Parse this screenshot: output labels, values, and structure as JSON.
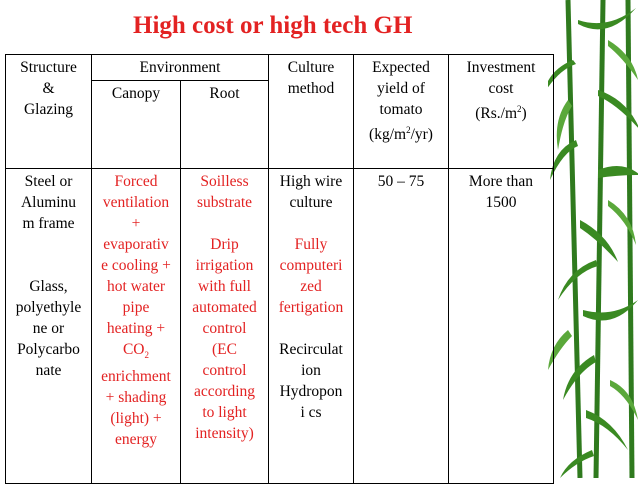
{
  "slide": {
    "title": "High cost or high tech GH",
    "colors": {
      "title": "#e32222",
      "red_text": "#e32222",
      "border": "#000000"
    }
  },
  "table": {
    "headers": {
      "structure": "Structure\n&\nGlazing",
      "environment": "Environment",
      "canopy": "Canopy",
      "root": "Root",
      "culture": "Culture\nmethod",
      "yield_main": "Expected\nyield of\ntomato\n(kg/m",
      "yield_sup": "2",
      "yield_end": "/yr)",
      "investment_main": "Investment\ncost\n(Rs./m",
      "investment_sup": "2",
      "investment_end": ")"
    },
    "row": {
      "structure": "Steel or\nAluminu\nm frame\n\n\nGlass,\npolyethyle\nne or\nPolycarbo\nnate",
      "canopy_main": "Forced\nventilation\n+\nevaporativ\ne cooling +\nhot water\npipe\nheating +\nCO",
      "canopy_sub": "2",
      "canopy_end": "\nenrichment\n+ shading\n(light) +\nenergy",
      "root": "Soilless\nsubstrate\n\nDrip\nirrigation\nwith full\nautomated\ncontrol\n(EC\ncontrol\naccording\nto light\nintensity)",
      "culture": "High wire\nculture\n\nFully\ncomputeri\nzed\nfertigation\n\nRecirculat\nion\nHydropon\ni cs",
      "yield": "50 – 75",
      "investment": "More than\n1500"
    }
  }
}
